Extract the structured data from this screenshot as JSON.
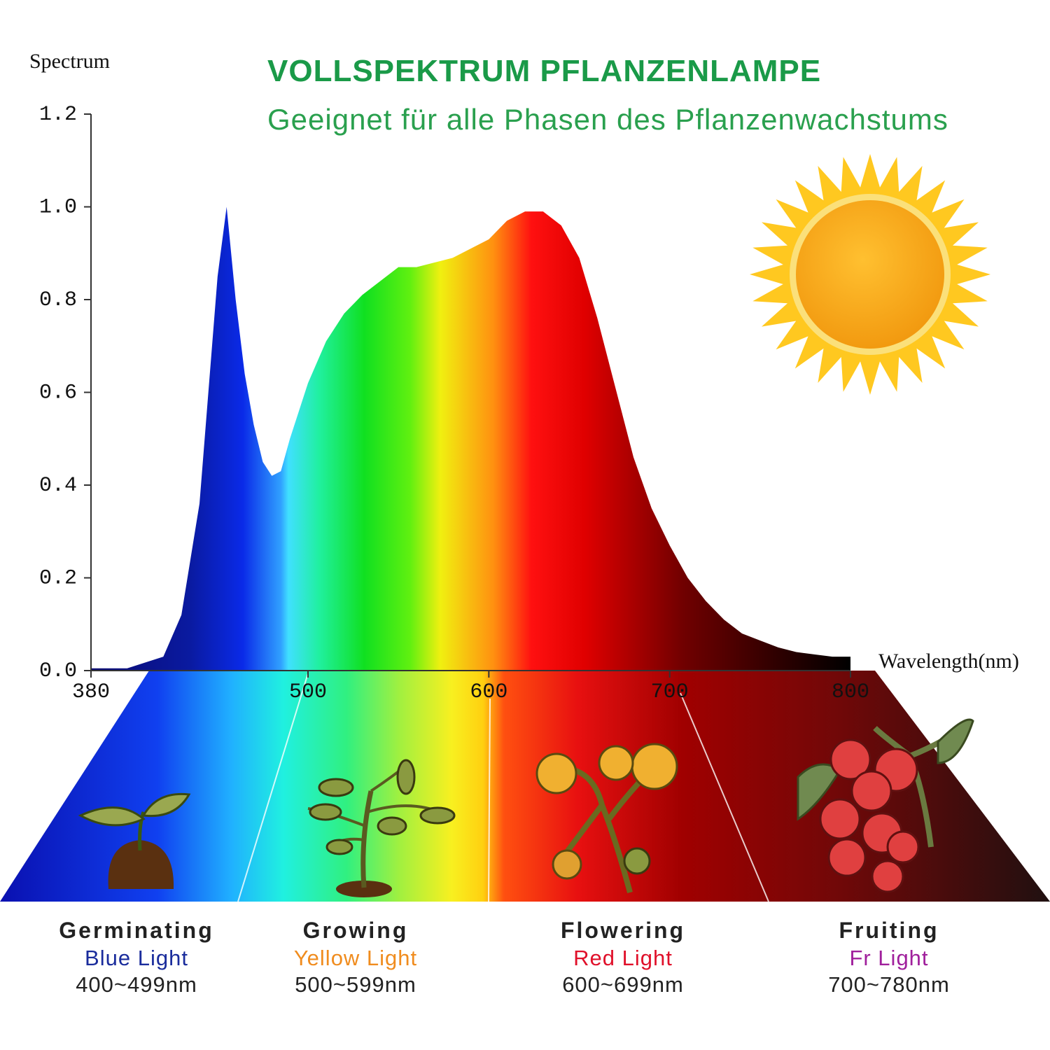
{
  "chart_data": {
    "type": "area",
    "title": "VOLLSPEKTRUM PFLANZENLAMPE",
    "subtitle": "Geeignet für alle Phasen des Pflanzenwachstums",
    "y_label": "Spectrum",
    "x_label": "Wavelength(nm)",
    "x": [
      380,
      400,
      420,
      430,
      440,
      450,
      455,
      460,
      465,
      470,
      475,
      480,
      485,
      490,
      500,
      510,
      520,
      530,
      540,
      550,
      560,
      570,
      580,
      590,
      600,
      610,
      620,
      630,
      640,
      650,
      660,
      670,
      680,
      690,
      700,
      710,
      720,
      730,
      740,
      750,
      760,
      770,
      780,
      790,
      800
    ],
    "values": [
      0.005,
      0.005,
      0.03,
      0.12,
      0.36,
      0.85,
      1.0,
      0.8,
      0.64,
      0.53,
      0.45,
      0.42,
      0.43,
      0.5,
      0.62,
      0.71,
      0.77,
      0.81,
      0.84,
      0.87,
      0.87,
      0.88,
      0.89,
      0.91,
      0.93,
      0.97,
      0.99,
      0.99,
      0.96,
      0.89,
      0.76,
      0.61,
      0.46,
      0.35,
      0.27,
      0.2,
      0.15,
      0.11,
      0.08,
      0.065,
      0.05,
      0.04,
      0.035,
      0.03,
      0.03
    ],
    "xlim": [
      380,
      800
    ],
    "xticks": [
      380,
      500,
      600,
      700,
      800
    ],
    "ylim": [
      0,
      1.2
    ],
    "yticks": [
      {
        "value": 0,
        "label": "0.0"
      },
      0.2,
      0.4,
      0.6,
      0.8,
      {
        "value": 1,
        "label": "1.0"
      },
      1.2
    ]
  },
  "stages": [
    {
      "name": "Germinating",
      "light": "Blue Light",
      "range": "400~499nm",
      "color": "#1a2c9c"
    },
    {
      "name": "Growing",
      "light": "Yellow Light",
      "range": "500~599nm",
      "color": "#f08c1e"
    },
    {
      "name": "Flowering",
      "light": "Red Light",
      "range": "600~699nm",
      "color": "#e0102a"
    },
    {
      "name": "Fruiting",
      "light": "Fr Light",
      "range": "700~780nm",
      "color": "#a0209c"
    }
  ]
}
